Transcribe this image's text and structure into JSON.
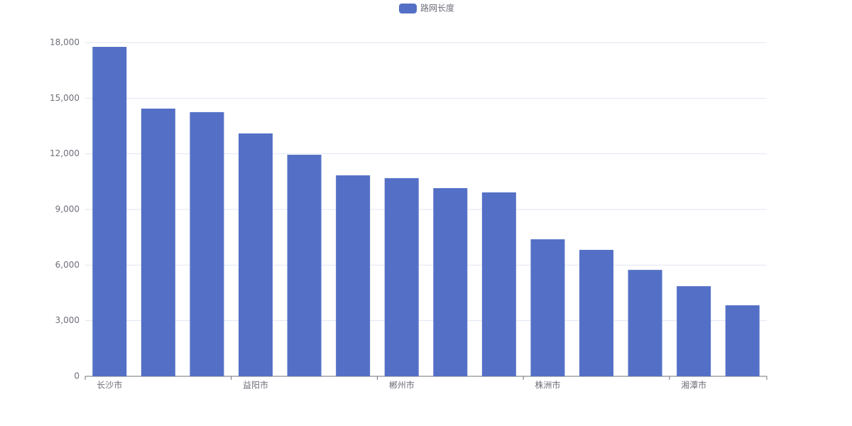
{
  "chart_data": {
    "type": "bar",
    "categories": [
      "长沙市",
      null,
      null,
      "益阳市",
      null,
      null,
      "郴州市",
      null,
      null,
      "株洲市",
      null,
      null,
      "湘潭市",
      null
    ],
    "series": [
      {
        "name": "路网长度",
        "color": "#5470c6",
        "values": [
          17770,
          14440,
          14250,
          13100,
          11950,
          10840,
          10690,
          10150,
          9920,
          7390,
          6820,
          5740,
          4860,
          3830
        ]
      }
    ],
    "ylim": [
      0,
      18000
    ],
    "yticks": [
      0,
      {
        "value": 3000,
        "label": "3,000"
      },
      {
        "value": 6000,
        "label": "6,000"
      },
      {
        "value": 9000,
        "label": "9,000"
      },
      {
        "value": 12000,
        "label": "12,000"
      },
      {
        "value": 15000,
        "label": "15,000"
      },
      {
        "value": 18000,
        "label": "18,000"
      }
    ],
    "grid": true,
    "legend": "top"
  }
}
